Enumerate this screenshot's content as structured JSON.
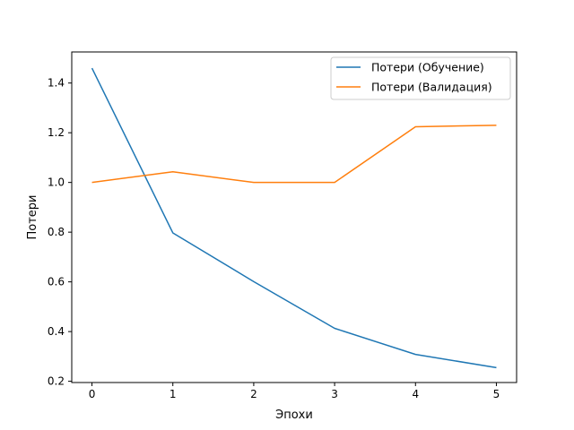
{
  "chart_data": {
    "type": "line",
    "title": "",
    "xlabel": "Эпохи",
    "ylabel": "Потери",
    "x": [
      0,
      1,
      2,
      3,
      4,
      5
    ],
    "xticks": [
      "0",
      "1",
      "2",
      "3",
      "4",
      "5"
    ],
    "yticks": [
      "0.2",
      "0.4",
      "0.6",
      "0.8",
      "1.0",
      "1.2",
      "1.4"
    ],
    "xlim": [
      -0.25,
      5.25
    ],
    "ylim": [
      0.195,
      1.525
    ],
    "grid": false,
    "legend_position": "top-right",
    "series": [
      {
        "name": "Потери (Обучение)",
        "color": "#1f77b4",
        "values": [
          1.46,
          0.797,
          0.601,
          0.413,
          0.308,
          0.255
        ]
      },
      {
        "name": "Потери (Валидация)",
        "color": "#ff7f0e",
        "values": [
          1.0,
          1.043,
          1.0,
          1.0,
          1.224,
          1.23
        ]
      }
    ]
  }
}
